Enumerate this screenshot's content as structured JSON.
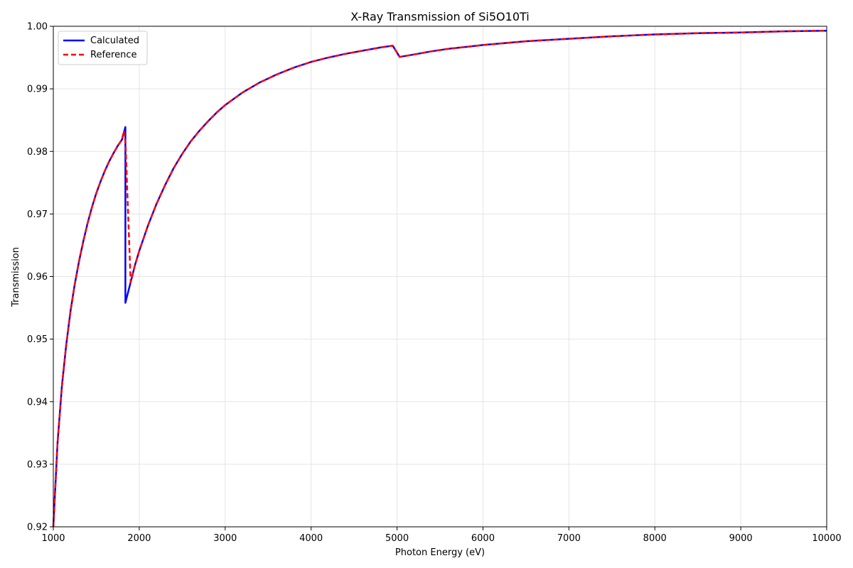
{
  "chart_data": {
    "type": "line",
    "title": "X-Ray Transmission of Si5O10Ti",
    "xlabel": "Photon Energy (eV)",
    "ylabel": "Transmission",
    "xlim": [
      1000,
      10000
    ],
    "ylim": [
      0.92,
      1.0
    ],
    "xticks": [
      1000,
      2000,
      3000,
      4000,
      5000,
      6000,
      7000,
      8000,
      9000,
      10000
    ],
    "xtick_labels": [
      "1000",
      "2000",
      "3000",
      "4000",
      "5000",
      "6000",
      "7000",
      "8000",
      "9000",
      "10000"
    ],
    "yticks": [
      0.92,
      0.93,
      0.94,
      0.95,
      0.96,
      0.97,
      0.98,
      0.99,
      1.0
    ],
    "ytick_labels": [
      "0.92",
      "0.93",
      "0.94",
      "0.95",
      "0.96",
      "0.97",
      "0.98",
      "0.99",
      "1.00"
    ],
    "grid": true,
    "legend_position": "upper-left",
    "series": [
      {
        "name": "Calculated",
        "color": "#0000ff",
        "style": "solid",
        "x": [
          1000,
          1050,
          1100,
          1150,
          1200,
          1250,
          1300,
          1350,
          1400,
          1450,
          1500,
          1550,
          1600,
          1650,
          1700,
          1750,
          1800,
          1839,
          1839,
          1900,
          1950,
          2000,
          2100,
          2200,
          2300,
          2400,
          2500,
          2600,
          2700,
          2800,
          2900,
          3000,
          3200,
          3400,
          3600,
          3800,
          4000,
          4200,
          4400,
          4600,
          4800,
          4950,
          5030,
          5200,
          5400,
          5600,
          5800,
          6000,
          6500,
          7000,
          7500,
          8000,
          8500,
          9000,
          9500,
          10000
        ],
        "y": [
          0.92,
          0.9335,
          0.9425,
          0.949,
          0.9545,
          0.9588,
          0.9625,
          0.9657,
          0.9686,
          0.9711,
          0.9733,
          0.9752,
          0.9769,
          0.9784,
          0.9797,
          0.9809,
          0.9819,
          0.9839,
          0.9558,
          0.9591,
          0.9618,
          0.9641,
          0.9681,
          0.9716,
          0.9746,
          0.9773,
          0.9796,
          0.9816,
          0.9833,
          0.9848,
          0.9862,
          0.9874,
          0.9894,
          0.991,
          0.9923,
          0.9934,
          0.9943,
          0.995,
          0.9956,
          0.9961,
          0.9966,
          0.9969,
          0.9951,
          0.9955,
          0.996,
          0.9964,
          0.9967,
          0.997,
          0.9976,
          0.998,
          0.9984,
          0.9987,
          0.9989,
          0.999,
          0.9992,
          0.9993
        ]
      },
      {
        "name": "Reference",
        "color": "#ff0000",
        "style": "dashed",
        "x": [
          1000,
          1050,
          1100,
          1150,
          1200,
          1250,
          1300,
          1350,
          1400,
          1450,
          1500,
          1550,
          1600,
          1650,
          1700,
          1750,
          1800,
          1820,
          1840,
          1900,
          1950,
          2000,
          2100,
          2200,
          2300,
          2400,
          2500,
          2600,
          2700,
          2800,
          2900,
          3000,
          3200,
          3400,
          3600,
          3800,
          4000,
          4200,
          4400,
          4600,
          4800,
          4950,
          5030,
          5200,
          5400,
          5600,
          5800,
          6000,
          6500,
          7000,
          7500,
          8000,
          8500,
          9000,
          9500,
          10000
        ],
        "y": [
          0.92,
          0.9335,
          0.9425,
          0.949,
          0.9545,
          0.9588,
          0.9625,
          0.9657,
          0.9686,
          0.9711,
          0.9733,
          0.9752,
          0.9769,
          0.9784,
          0.9797,
          0.9809,
          0.9819,
          0.9833,
          0.9815,
          0.9591,
          0.9618,
          0.9641,
          0.9681,
          0.9716,
          0.9746,
          0.9773,
          0.9796,
          0.9816,
          0.9833,
          0.9848,
          0.9862,
          0.9874,
          0.9894,
          0.991,
          0.9923,
          0.9934,
          0.9943,
          0.995,
          0.9956,
          0.9961,
          0.9966,
          0.9969,
          0.9951,
          0.9955,
          0.996,
          0.9964,
          0.9967,
          0.997,
          0.9976,
          0.998,
          0.9984,
          0.9987,
          0.9989,
          0.999,
          0.9992,
          0.9993
        ]
      }
    ]
  }
}
